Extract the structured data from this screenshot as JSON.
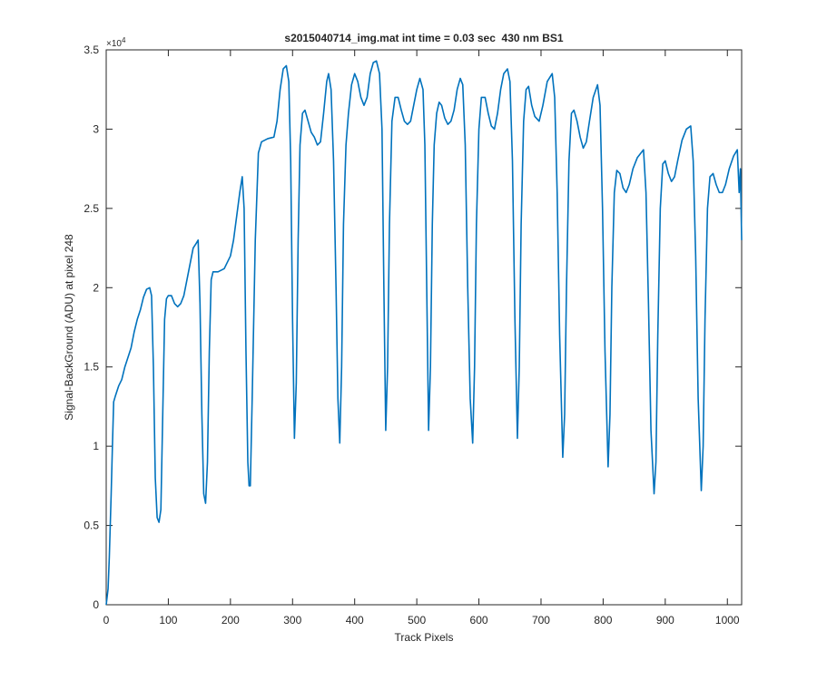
{
  "chart_data": {
    "type": "line",
    "title": "s2015040714_img.mat int time = 0.03 sec  430 nm BS1",
    "xlabel": "Track Pixels",
    "ylabel": "Signal-BackGround (ADU) at pixel 248",
    "y_exponent_label": {
      "base": "×10",
      "exponent": "4"
    },
    "color": "#0072bd",
    "xlim": [
      0,
      1023
    ],
    "ylim": [
      0,
      3.5
    ],
    "xticks": [
      0,
      100,
      200,
      300,
      400,
      500,
      600,
      700,
      800,
      900,
      1000
    ],
    "yticks": [
      0,
      0.5,
      1,
      1.5,
      2,
      2.5,
      3,
      3.5
    ],
    "x": [
      0,
      3,
      5,
      8,
      10,
      12,
      15,
      20,
      25,
      30,
      35,
      40,
      45,
      50,
      55,
      60,
      65,
      70,
      73,
      76,
      79,
      82,
      85,
      88,
      91,
      94,
      97,
      100,
      105,
      110,
      115,
      120,
      125,
      130,
      135,
      140,
      145,
      148,
      151,
      154,
      157,
      160,
      163,
      166,
      169,
      172,
      180,
      190,
      200,
      205,
      210,
      215,
      219,
      222,
      225,
      228,
      230,
      232,
      235,
      240,
      245,
      250,
      260,
      270,
      275,
      280,
      285,
      290,
      294,
      297,
      300,
      303,
      306,
      309,
      312,
      316,
      320,
      325,
      330,
      335,
      340,
      345,
      350,
      355,
      358,
      362,
      366,
      370,
      373,
      376,
      379,
      382,
      386,
      390,
      395,
      400,
      405,
      410,
      415,
      420,
      425,
      430,
      435,
      440,
      444,
      447,
      450,
      453,
      456,
      460,
      465,
      470,
      475,
      480,
      485,
      490,
      495,
      500,
      505,
      510,
      513,
      516,
      519,
      522,
      525,
      528,
      532,
      536,
      540,
      545,
      550,
      555,
      560,
      565,
      570,
      574,
      578,
      582,
      586,
      590,
      593,
      596,
      600,
      604,
      610,
      615,
      620,
      625,
      630,
      635,
      640,
      646,
      650,
      654,
      658,
      662,
      665,
      668,
      672,
      676,
      680,
      685,
      690,
      697,
      703,
      710,
      718,
      722,
      726,
      730,
      735,
      738,
      741,
      745,
      749,
      753,
      758,
      763,
      768,
      773,
      778,
      784,
      791,
      795,
      799,
      803,
      808,
      811,
      814,
      818,
      822,
      827,
      832,
      837,
      842,
      848,
      855,
      865,
      869,
      873,
      877,
      882,
      885,
      888,
      892,
      896,
      900,
      905,
      910,
      915,
      920,
      927,
      934,
      941,
      945,
      949,
      953,
      958,
      961,
      964,
      968,
      972,
      977,
      982,
      987,
      992,
      997,
      1003,
      1010,
      1016,
      1019,
      1021,
      1023
    ],
    "values": [
      0,
      0.1,
      0.3,
      0.7,
      1.0,
      1.28,
      1.32,
      1.38,
      1.42,
      1.5,
      1.56,
      1.62,
      1.72,
      1.8,
      1.86,
      1.94,
      1.99,
      2.0,
      1.95,
      1.5,
      0.8,
      0.55,
      0.52,
      0.6,
      1.2,
      1.8,
      1.93,
      1.95,
      1.95,
      1.9,
      1.88,
      1.9,
      1.95,
      2.05,
      2.15,
      2.25,
      2.28,
      2.3,
      1.9,
      1.2,
      0.7,
      0.64,
      0.9,
      1.6,
      2.05,
      2.1,
      2.1,
      2.12,
      2.2,
      2.3,
      2.45,
      2.6,
      2.7,
      2.5,
      1.6,
      0.9,
      0.75,
      0.75,
      1.3,
      2.3,
      2.85,
      2.92,
      2.94,
      2.95,
      3.05,
      3.25,
      3.38,
      3.4,
      3.3,
      2.8,
      1.8,
      1.05,
      1.4,
      2.3,
      2.9,
      3.1,
      3.12,
      3.05,
      2.98,
      2.95,
      2.9,
      2.92,
      3.1,
      3.3,
      3.35,
      3.25,
      2.8,
      2.0,
      1.3,
      1.02,
      1.5,
      2.4,
      2.9,
      3.1,
      3.28,
      3.35,
      3.3,
      3.2,
      3.15,
      3.2,
      3.35,
      3.42,
      3.43,
      3.35,
      3.0,
      2.0,
      1.1,
      1.5,
      2.4,
      3.05,
      3.2,
      3.2,
      3.12,
      3.05,
      3.03,
      3.05,
      3.15,
      3.25,
      3.32,
      3.25,
      2.9,
      2.0,
      1.1,
      1.5,
      2.4,
      2.9,
      3.1,
      3.17,
      3.15,
      3.07,
      3.03,
      3.05,
      3.12,
      3.25,
      3.32,
      3.28,
      2.9,
      2.0,
      1.3,
      1.02,
      1.5,
      2.4,
      3.0,
      3.2,
      3.2,
      3.1,
      3.02,
      3.0,
      3.1,
      3.25,
      3.35,
      3.38,
      3.3,
      2.8,
      1.8,
      1.05,
      1.5,
      2.4,
      3.05,
      3.25,
      3.27,
      3.15,
      3.08,
      3.05,
      3.15,
      3.3,
      3.35,
      3.2,
      2.6,
      1.7,
      0.93,
      1.2,
      2.0,
      2.8,
      3.1,
      3.12,
      3.05,
      2.95,
      2.88,
      2.92,
      3.05,
      3.2,
      3.28,
      3.15,
      2.5,
      1.6,
      0.87,
      1.2,
      2.0,
      2.6,
      2.74,
      2.72,
      2.63,
      2.6,
      2.65,
      2.75,
      2.82,
      2.87,
      2.6,
      1.9,
      1.1,
      0.7,
      0.9,
      1.7,
      2.5,
      2.78,
      2.8,
      2.72,
      2.67,
      2.7,
      2.8,
      2.93,
      3.0,
      3.02,
      2.8,
      2.2,
      1.3,
      0.72,
      1.0,
      1.8,
      2.5,
      2.7,
      2.72,
      2.65,
      2.6,
      2.6,
      2.65,
      2.75,
      2.83,
      2.87,
      2.6,
      2.75,
      2.3
    ]
  }
}
